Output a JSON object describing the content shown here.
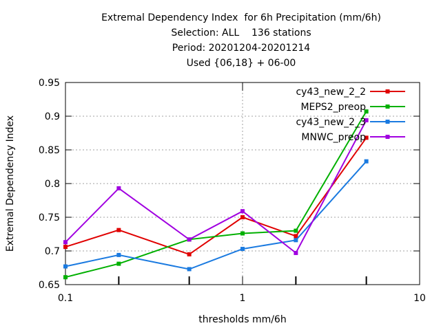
{
  "chart_data": {
    "type": "line",
    "title_lines": [
      "Extremal Dependency Index  for 6h Precipitation (mm/6h)",
      "Selection: ALL    136 stations",
      "Period: 20201204-20201214",
      "Used {06,18} + 06-00"
    ],
    "xlabel": "thresholds mm/6h",
    "ylabel": "Extremal Dependency Index",
    "x_scale": "log",
    "xlim": [
      0.1,
      10
    ],
    "ylim": [
      0.65,
      0.95
    ],
    "x_ticks": [
      0.1,
      1,
      10
    ],
    "x_tick_labels": [
      "0.1",
      "1",
      "10"
    ],
    "y_ticks": [
      0.65,
      0.7,
      0.75,
      0.8,
      0.85,
      0.9,
      0.95
    ],
    "y_tick_labels": [
      "0.65",
      "0.7",
      "0.75",
      "0.8",
      "0.85",
      "0.9",
      "0.95"
    ],
    "grid": true,
    "legend_position": "top-right",
    "x": [
      0.1,
      0.2,
      0.5,
      1,
      2,
      5
    ],
    "series": [
      {
        "name": "cy43_new_2_2",
        "color": "#e00000",
        "values": [
          0.706,
          0.731,
          0.695,
          0.75,
          0.722,
          0.868
        ]
      },
      {
        "name": "MEPS2_preop",
        "color": "#00b000",
        "values": [
          0.661,
          0.681,
          0.717,
          0.726,
          0.73,
          0.907
        ]
      },
      {
        "name": "cy43_new_2_3",
        "color": "#1a7ae0",
        "values": [
          0.677,
          0.694,
          0.673,
          0.703,
          0.716,
          0.833
        ]
      },
      {
        "name": "MNWC_preop",
        "color": "#a000e0",
        "values": [
          0.713,
          0.793,
          0.717,
          0.759,
          0.697,
          0.894
        ]
      }
    ]
  }
}
